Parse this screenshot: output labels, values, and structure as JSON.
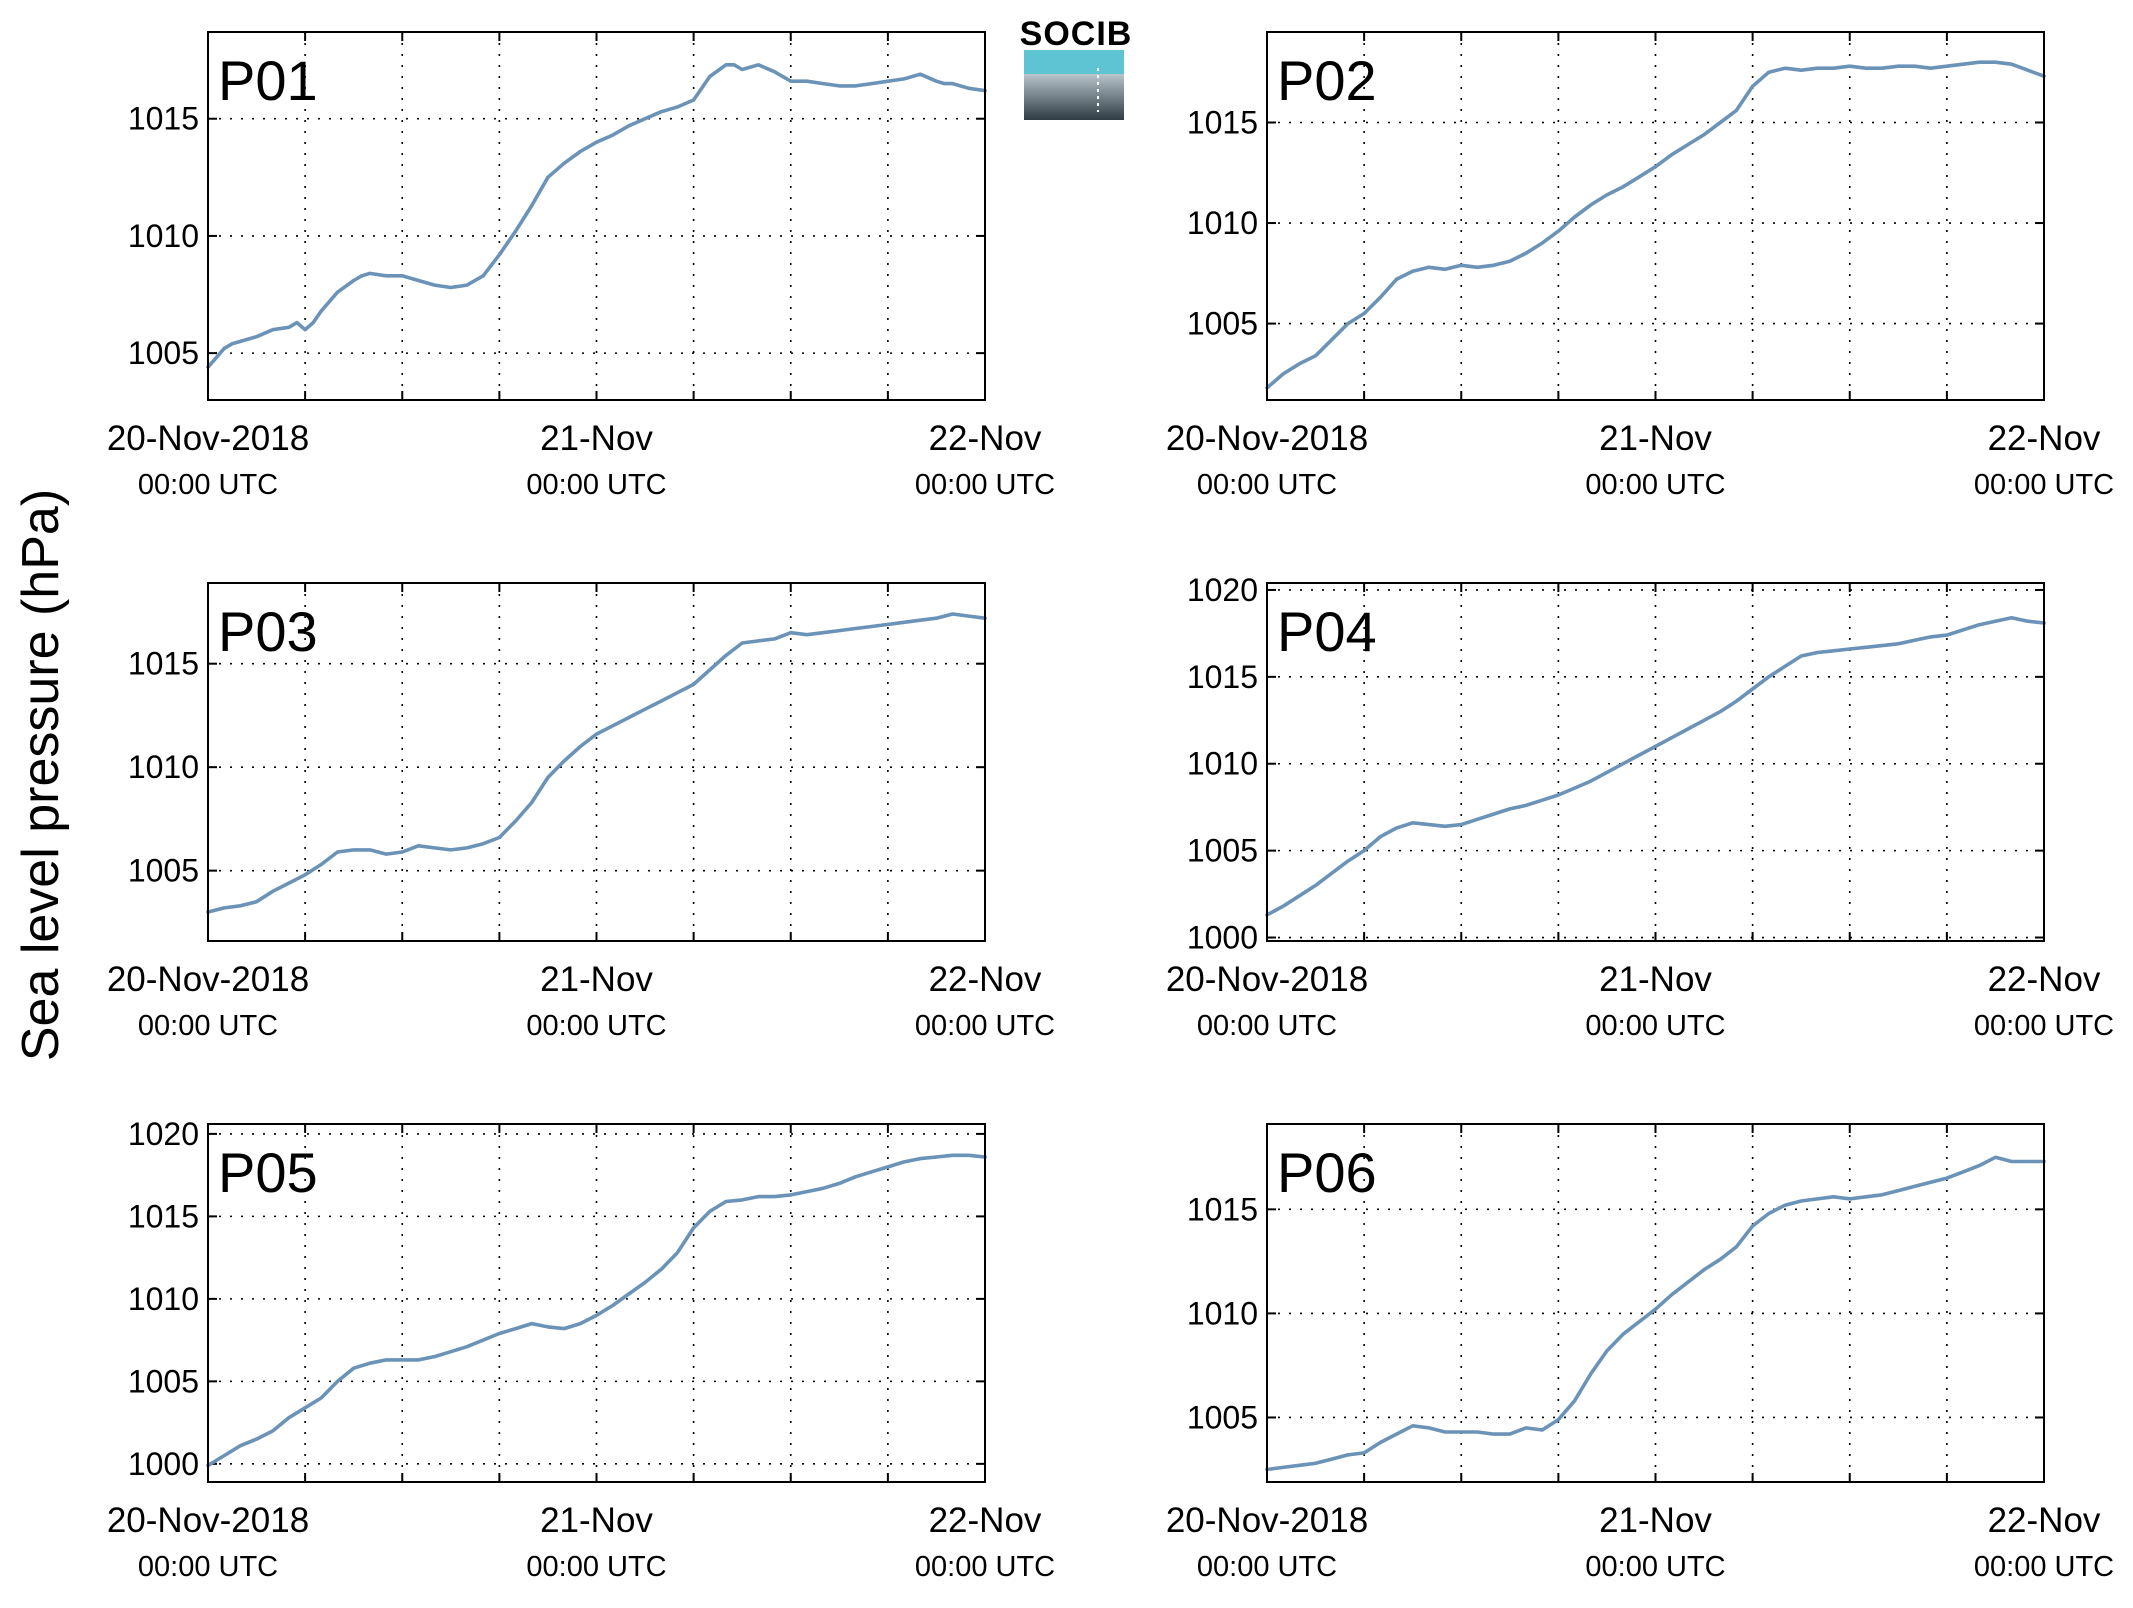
{
  "figure": {
    "ylabel": "Sea level pressure (hPa)",
    "logo_text": "SOCIB",
    "colors": {
      "series": "#6b93b8",
      "panel_label": "#ff0000",
      "logo_top": "#5ec4d4",
      "logo_bottom": "#2e3c44"
    }
  },
  "chart_data": [
    {
      "type": "line",
      "label": "P01",
      "grid": true,
      "ylim": [
        1003,
        1018.7
      ],
      "yticks": [
        1005,
        1010,
        1015
      ],
      "xlim": [
        0,
        48
      ],
      "x_tick_labels": [
        {
          "x": 0,
          "main": "20-Nov-2018",
          "sub": "00:00 UTC"
        },
        {
          "x": 24,
          "main": "21-Nov",
          "sub": "00:00 UTC"
        },
        {
          "x": 48,
          "main": "22-Nov",
          "sub": "00:00 UTC"
        }
      ],
      "x_grid": [
        6,
        12,
        18,
        24,
        30,
        36,
        42
      ],
      "series": [
        {
          "x": [
            0,
            0.5,
            1,
            1.5,
            2,
            3,
            4,
            5,
            5.5,
            6,
            6.5,
            7,
            8,
            9,
            9.5,
            10,
            11,
            12,
            13,
            14,
            15,
            16,
            17,
            18,
            19,
            20,
            21,
            22,
            23,
            24,
            25,
            26,
            27,
            28,
            29,
            30,
            31,
            32,
            32.5,
            33,
            34,
            35,
            36,
            37,
            38,
            39,
            40,
            41,
            42,
            43,
            44,
            45,
            45.5,
            46,
            47,
            48
          ],
          "y": [
            1004.4,
            1004.8,
            1005.2,
            1005.4,
            1005.5,
            1005.7,
            1006.0,
            1006.1,
            1006.3,
            1006.0,
            1006.3,
            1006.8,
            1007.6,
            1008.1,
            1008.3,
            1008.4,
            1008.3,
            1008.3,
            1008.1,
            1007.9,
            1007.8,
            1007.9,
            1008.3,
            1009.2,
            1010.2,
            1011.3,
            1012.5,
            1013.1,
            1013.6,
            1014.0,
            1014.3,
            1014.7,
            1015.0,
            1015.3,
            1015.5,
            1015.8,
            1016.8,
            1017.3,
            1017.3,
            1017.1,
            1017.3,
            1017.0,
            1016.6,
            1016.6,
            1016.5,
            1016.4,
            1016.4,
            1016.5,
            1016.6,
            1016.7,
            1016.9,
            1016.6,
            1016.5,
            1016.5,
            1016.3,
            1016.2
          ]
        }
      ]
    },
    {
      "type": "line",
      "label": "P02",
      "grid": true,
      "ylim": [
        1001.2,
        1019.5
      ],
      "yticks": [
        1005,
        1010,
        1015
      ],
      "xlim": [
        0,
        48
      ],
      "x_tick_labels": [
        {
          "x": 0,
          "main": "20-Nov-2018",
          "sub": "00:00 UTC"
        },
        {
          "x": 24,
          "main": "21-Nov",
          "sub": "00:00 UTC"
        },
        {
          "x": 48,
          "main": "22-Nov",
          "sub": "00:00 UTC"
        }
      ],
      "x_grid": [
        6,
        12,
        18,
        24,
        30,
        36,
        42
      ],
      "series": [
        {
          "x": [
            0,
            1,
            2,
            3,
            4,
            5,
            6,
            7,
            8,
            9,
            10,
            11,
            12,
            13,
            14,
            15,
            16,
            17,
            18,
            19,
            20,
            21,
            22,
            23,
            24,
            25,
            26,
            27,
            28,
            29,
            30,
            31,
            32,
            33,
            34,
            35,
            36,
            37,
            38,
            39,
            40,
            41,
            42,
            43,
            44,
            45,
            46,
            47,
            48
          ],
          "y": [
            1001.8,
            1002.5,
            1003.0,
            1003.4,
            1004.2,
            1005.0,
            1005.5,
            1006.3,
            1007.2,
            1007.6,
            1007.8,
            1007.7,
            1007.9,
            1007.8,
            1007.9,
            1008.1,
            1008.5,
            1009.0,
            1009.6,
            1010.3,
            1010.9,
            1011.4,
            1011.8,
            1012.3,
            1012.8,
            1013.4,
            1013.9,
            1014.4,
            1015.0,
            1015.6,
            1016.8,
            1017.5,
            1017.7,
            1017.6,
            1017.7,
            1017.7,
            1017.8,
            1017.7,
            1017.7,
            1017.8,
            1017.8,
            1017.7,
            1017.8,
            1017.9,
            1018.0,
            1018.0,
            1017.9,
            1017.6,
            1017.3
          ]
        }
      ]
    },
    {
      "type": "line",
      "label": "P03",
      "grid": true,
      "ylim": [
        1001.6,
        1018.9
      ],
      "yticks": [
        1005,
        1010,
        1015
      ],
      "xlim": [
        0,
        48
      ],
      "x_tick_labels": [
        {
          "x": 0,
          "main": "20-Nov-2018",
          "sub": "00:00 UTC"
        },
        {
          "x": 24,
          "main": "21-Nov",
          "sub": "00:00 UTC"
        },
        {
          "x": 48,
          "main": "22-Nov",
          "sub": "00:00 UTC"
        }
      ],
      "x_grid": [
        6,
        12,
        18,
        24,
        30,
        36,
        42
      ],
      "series": [
        {
          "x": [
            0,
            1,
            2,
            3,
            4,
            5,
            6,
            7,
            8,
            9,
            10,
            11,
            12,
            13,
            14,
            15,
            16,
            17,
            18,
            19,
            20,
            21,
            22,
            23,
            24,
            25,
            26,
            27,
            28,
            29,
            30,
            31,
            32,
            33,
            34,
            35,
            36,
            37,
            38,
            39,
            40,
            41,
            42,
            43,
            44,
            45,
            46,
            47,
            48
          ],
          "y": [
            1003.0,
            1003.2,
            1003.3,
            1003.5,
            1004.0,
            1004.4,
            1004.8,
            1005.3,
            1005.9,
            1006.0,
            1006.0,
            1005.8,
            1005.9,
            1006.2,
            1006.1,
            1006.0,
            1006.1,
            1006.3,
            1006.6,
            1007.4,
            1008.3,
            1009.5,
            1010.3,
            1011.0,
            1011.6,
            1012.0,
            1012.4,
            1012.8,
            1013.2,
            1013.6,
            1014.0,
            1014.7,
            1015.4,
            1016.0,
            1016.1,
            1016.2,
            1016.5,
            1016.4,
            1016.5,
            1016.6,
            1016.7,
            1016.8,
            1016.9,
            1017.0,
            1017.1,
            1017.2,
            1017.4,
            1017.3,
            1017.2
          ]
        }
      ]
    },
    {
      "type": "line",
      "label": "P04",
      "grid": true,
      "ylim": [
        999.8,
        1020.4
      ],
      "yticks": [
        1000,
        1005,
        1010,
        1015,
        1020
      ],
      "xlim": [
        0,
        48
      ],
      "x_tick_labels": [
        {
          "x": 0,
          "main": "20-Nov-2018",
          "sub": "00:00 UTC"
        },
        {
          "x": 24,
          "main": "21-Nov",
          "sub": "00:00 UTC"
        },
        {
          "x": 48,
          "main": "22-Nov",
          "sub": "00:00 UTC"
        }
      ],
      "x_grid": [
        6,
        12,
        18,
        24,
        30,
        36,
        42
      ],
      "series": [
        {
          "x": [
            0,
            1,
            2,
            3,
            4,
            5,
            6,
            7,
            8,
            9,
            10,
            11,
            12,
            13,
            14,
            15,
            16,
            17,
            18,
            19,
            20,
            21,
            22,
            23,
            24,
            25,
            26,
            27,
            28,
            29,
            30,
            31,
            32,
            33,
            34,
            35,
            36,
            37,
            38,
            39,
            40,
            41,
            42,
            43,
            44,
            45,
            46,
            47,
            48
          ],
          "y": [
            1001.3,
            1001.8,
            1002.4,
            1003.0,
            1003.7,
            1004.4,
            1005.0,
            1005.8,
            1006.3,
            1006.6,
            1006.5,
            1006.4,
            1006.5,
            1006.8,
            1007.1,
            1007.4,
            1007.6,
            1007.9,
            1008.2,
            1008.6,
            1009.0,
            1009.5,
            1010.0,
            1010.5,
            1011.0,
            1011.5,
            1012.0,
            1012.5,
            1013.0,
            1013.6,
            1014.3,
            1015.0,
            1015.6,
            1016.2,
            1016.4,
            1016.5,
            1016.6,
            1016.7,
            1016.8,
            1016.9,
            1017.1,
            1017.3,
            1017.4,
            1017.7,
            1018.0,
            1018.2,
            1018.4,
            1018.2,
            1018.1
          ]
        }
      ]
    },
    {
      "type": "line",
      "label": "P05",
      "grid": true,
      "ylim": [
        998.9,
        1020.6
      ],
      "yticks": [
        1000,
        1005,
        1010,
        1015,
        1020
      ],
      "xlim": [
        0,
        48
      ],
      "x_tick_labels": [
        {
          "x": 0,
          "main": "20-Nov-2018",
          "sub": "00:00 UTC"
        },
        {
          "x": 24,
          "main": "21-Nov",
          "sub": "00:00 UTC"
        },
        {
          "x": 48,
          "main": "22-Nov",
          "sub": "00:00 UTC"
        }
      ],
      "x_grid": [
        6,
        12,
        18,
        24,
        30,
        36,
        42
      ],
      "series": [
        {
          "x": [
            0,
            1,
            2,
            3,
            4,
            5,
            6,
            7,
            8,
            9,
            10,
            11,
            12,
            13,
            14,
            15,
            16,
            17,
            18,
            19,
            20,
            21,
            22,
            23,
            24,
            25,
            26,
            27,
            28,
            29,
            30,
            31,
            32,
            33,
            34,
            35,
            36,
            37,
            38,
            39,
            40,
            41,
            42,
            43,
            44,
            45,
            46,
            47,
            48
          ],
          "y": [
            999.9,
            1000.5,
            1001.1,
            1001.5,
            1002.0,
            1002.8,
            1003.4,
            1004.0,
            1005.0,
            1005.8,
            1006.1,
            1006.3,
            1006.3,
            1006.3,
            1006.5,
            1006.8,
            1007.1,
            1007.5,
            1007.9,
            1008.2,
            1008.5,
            1008.3,
            1008.2,
            1008.5,
            1009.0,
            1009.6,
            1010.3,
            1011.0,
            1011.8,
            1012.8,
            1014.3,
            1015.3,
            1015.9,
            1016.0,
            1016.2,
            1016.2,
            1016.3,
            1016.5,
            1016.7,
            1017.0,
            1017.4,
            1017.7,
            1018.0,
            1018.3,
            1018.5,
            1018.6,
            1018.7,
            1018.7,
            1018.6
          ]
        }
      ]
    },
    {
      "type": "line",
      "label": "P06",
      "grid": true,
      "ylim": [
        1001.9,
        1019.1
      ],
      "yticks": [
        1005,
        1010,
        1015
      ],
      "xlim": [
        0,
        48
      ],
      "x_tick_labels": [
        {
          "x": 0,
          "main": "20-Nov-2018",
          "sub": "00:00 UTC"
        },
        {
          "x": 24,
          "main": "21-Nov",
          "sub": "00:00 UTC"
        },
        {
          "x": 48,
          "main": "22-Nov",
          "sub": "00:00 UTC"
        }
      ],
      "x_grid": [
        6,
        12,
        18,
        24,
        30,
        36,
        42
      ],
      "series": [
        {
          "x": [
            0,
            1,
            2,
            3,
            4,
            5,
            6,
            7,
            8,
            9,
            10,
            11,
            12,
            13,
            14,
            15,
            16,
            17,
            18,
            19,
            20,
            21,
            22,
            23,
            24,
            25,
            26,
            27,
            28,
            29,
            30,
            31,
            32,
            33,
            34,
            35,
            36,
            37,
            38,
            39,
            40,
            41,
            42,
            43,
            44,
            45,
            46,
            47,
            48
          ],
          "y": [
            1002.5,
            1002.6,
            1002.7,
            1002.8,
            1003.0,
            1003.2,
            1003.3,
            1003.8,
            1004.2,
            1004.6,
            1004.5,
            1004.3,
            1004.3,
            1004.3,
            1004.2,
            1004.2,
            1004.5,
            1004.4,
            1004.9,
            1005.8,
            1007.1,
            1008.2,
            1009.0,
            1009.6,
            1010.2,
            1010.9,
            1011.5,
            1012.1,
            1012.6,
            1013.2,
            1014.2,
            1014.8,
            1015.2,
            1015.4,
            1015.5,
            1015.6,
            1015.5,
            1015.6,
            1015.7,
            1015.9,
            1016.1,
            1016.3,
            1016.5,
            1016.8,
            1017.1,
            1017.5,
            1017.3,
            1017.3,
            1017.3
          ]
        }
      ]
    }
  ]
}
